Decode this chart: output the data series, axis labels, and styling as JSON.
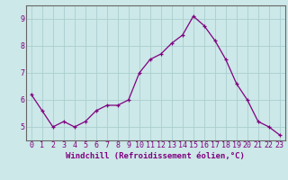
{
  "x": [
    0,
    1,
    2,
    3,
    4,
    5,
    6,
    7,
    8,
    9,
    10,
    11,
    12,
    13,
    14,
    15,
    16,
    17,
    18,
    19,
    20,
    21,
    22,
    23
  ],
  "y": [
    6.2,
    5.6,
    5.0,
    5.2,
    5.0,
    5.2,
    5.6,
    5.8,
    5.8,
    6.0,
    7.0,
    7.5,
    7.7,
    8.1,
    8.4,
    9.1,
    8.75,
    8.2,
    7.5,
    6.6,
    6.0,
    5.2,
    5.0,
    4.7
  ],
  "line_color": "#800080",
  "marker": "+",
  "marker_color": "#800080",
  "bg_color": "#cce8e8",
  "grid_color": "#aacece",
  "axis_color": "#666666",
  "xlabel": "Windchill (Refroidissement éolien,°C)",
  "xlabel_color": "#800080",
  "tick_color": "#800080",
  "xlim": [
    -0.5,
    23.5
  ],
  "ylim": [
    4.5,
    9.5
  ],
  "yticks": [
    5,
    6,
    7,
    8,
    9
  ],
  "xticks": [
    0,
    1,
    2,
    3,
    4,
    5,
    6,
    7,
    8,
    9,
    10,
    11,
    12,
    13,
    14,
    15,
    16,
    17,
    18,
    19,
    20,
    21,
    22,
    23
  ],
  "tick_fontsize": 6.0,
  "xlabel_fontsize": 6.5
}
